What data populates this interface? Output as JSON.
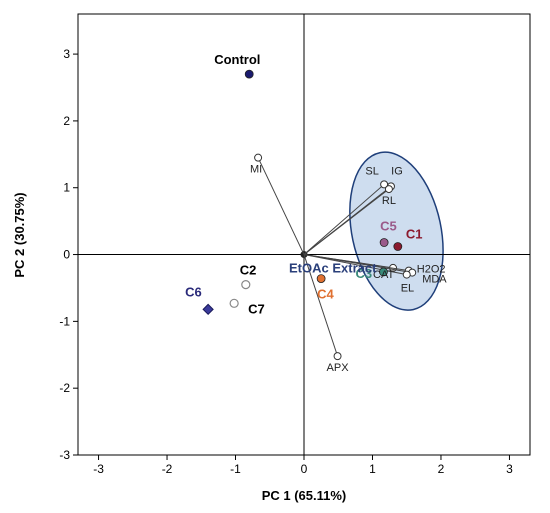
{
  "chart_data": {
    "type": "scatter",
    "xlabel": "PC 1 (65.11%)",
    "ylabel": "PC 2 (30.75%)",
    "xlim": [
      -3.3,
      3.3
    ],
    "ylim": [
      -3,
      3.6
    ],
    "xticks": [
      "-3",
      "-2",
      "-1",
      "0",
      "1",
      "2",
      "3"
    ],
    "yticks": [
      "3",
      "2",
      "1",
      "0",
      "-1",
      "-2",
      "-3"
    ],
    "grid": false,
    "reference_lines": {
      "x": 0,
      "y": 0
    },
    "origin_label": "EtOAc Extract",
    "variables": [
      {
        "name": "MI",
        "x": -0.67,
        "y": 1.45
      },
      {
        "name": "SL",
        "x": 1.17,
        "y": 1.05
      },
      {
        "name": "IG",
        "x": 1.27,
        "y": 1.02
      },
      {
        "name": "RL",
        "x": 1.24,
        "y": 0.98
      },
      {
        "name": "CAT",
        "x": 1.3,
        "y": -0.2
      },
      {
        "name": "H2O2",
        "x": 1.53,
        "y": -0.24
      },
      {
        "name": "MDA",
        "x": 1.58,
        "y": -0.27
      },
      {
        "name": "EL",
        "x": 1.5,
        "y": -0.3
      },
      {
        "name": "APX",
        "x": 0.49,
        "y": -1.52
      }
    ],
    "groups": [
      {
        "name": "Control",
        "x": -0.8,
        "y": 2.7,
        "color": "#1a1a6e",
        "marker": "circle"
      },
      {
        "name": "C1",
        "x": 1.37,
        "y": 0.12,
        "color": "#8b1a2e",
        "marker": "circle"
      },
      {
        "name": "C2",
        "x": -0.85,
        "y": -0.45,
        "color": "#888888",
        "marker": "open-circle"
      },
      {
        "name": "C3",
        "x": 1.16,
        "y": -0.26,
        "color": "#3a8a7a",
        "marker": "circle"
      },
      {
        "name": "C4",
        "x": 0.25,
        "y": -0.36,
        "color": "#e07030",
        "marker": "circle"
      },
      {
        "name": "C5",
        "x": 1.17,
        "y": 0.18,
        "color": "#9a5a8a",
        "marker": "circle"
      },
      {
        "name": "C6",
        "x": -1.4,
        "y": -0.82,
        "color": "#3a3a9a",
        "marker": "diamond"
      },
      {
        "name": "C7",
        "x": -1.02,
        "y": -0.73,
        "color": "#888888",
        "marker": "open-circle"
      }
    ],
    "highlight_ellipse": {
      "cx": 1.35,
      "cy": 0.35,
      "rx": 0.65,
      "ry": 1.2,
      "rotation": -12,
      "fill": "#c5d7ec",
      "stroke": "#1f3f7a"
    }
  }
}
